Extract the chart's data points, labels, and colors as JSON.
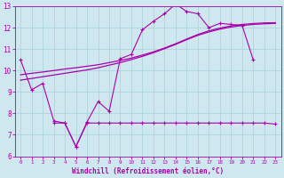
{
  "xlabel": "Windchill (Refroidissement éolien,°C)",
  "background_color": "#cfe8ef",
  "grid_color": "#a8d0dc",
  "line_color": "#aa00aa",
  "xlim": [
    -0.5,
    23.5
  ],
  "ylim": [
    6,
    13
  ],
  "xticks": [
    0,
    1,
    2,
    3,
    4,
    5,
    6,
    7,
    8,
    9,
    10,
    11,
    12,
    13,
    14,
    15,
    16,
    17,
    18,
    19,
    20,
    21,
    22,
    23
  ],
  "yticks": [
    6,
    7,
    8,
    9,
    10,
    11,
    12,
    13
  ],
  "x_main": [
    0,
    1,
    2,
    3,
    4,
    5,
    6,
    7,
    8,
    9,
    10,
    11,
    12,
    13,
    14,
    15,
    16,
    17,
    18,
    19,
    20,
    21
  ],
  "y_main": [
    10.5,
    9.1,
    9.4,
    7.65,
    7.55,
    6.45,
    7.6,
    8.55,
    8.1,
    10.55,
    10.75,
    11.9,
    12.3,
    12.65,
    13.1,
    12.75,
    12.65,
    12.0,
    12.2,
    12.15,
    12.1,
    10.5
  ],
  "x_flat": [
    3,
    4,
    5,
    6,
    7,
    8,
    9,
    10,
    11,
    12,
    13,
    14,
    15,
    16,
    17,
    18,
    19,
    20,
    21,
    22,
    23
  ],
  "y_flat": [
    7.55,
    7.55,
    6.45,
    7.55,
    7.55,
    7.55,
    7.55,
    7.55,
    7.55,
    7.55,
    7.55,
    7.55,
    7.55,
    7.55,
    7.55,
    7.55,
    7.55,
    7.55,
    7.55,
    7.55,
    7.5
  ],
  "x_trend": [
    0,
    1,
    2,
    3,
    4,
    5,
    6,
    7,
    8,
    9,
    10,
    11,
    12,
    13,
    14,
    15,
    16,
    17,
    18,
    19,
    20,
    21,
    22,
    23
  ],
  "y_trend1": [
    9.8,
    9.87,
    9.93,
    10.0,
    10.07,
    10.13,
    10.2,
    10.27,
    10.37,
    10.47,
    10.58,
    10.72,
    10.87,
    11.05,
    11.25,
    11.47,
    11.68,
    11.85,
    11.98,
    12.08,
    12.15,
    12.19,
    12.22,
    12.23
  ],
  "y_trend2": [
    9.55,
    9.63,
    9.71,
    9.79,
    9.87,
    9.95,
    10.03,
    10.13,
    10.25,
    10.37,
    10.51,
    10.66,
    10.83,
    11.02,
    11.22,
    11.44,
    11.64,
    11.8,
    11.93,
    12.03,
    12.1,
    12.15,
    12.18,
    12.2
  ]
}
